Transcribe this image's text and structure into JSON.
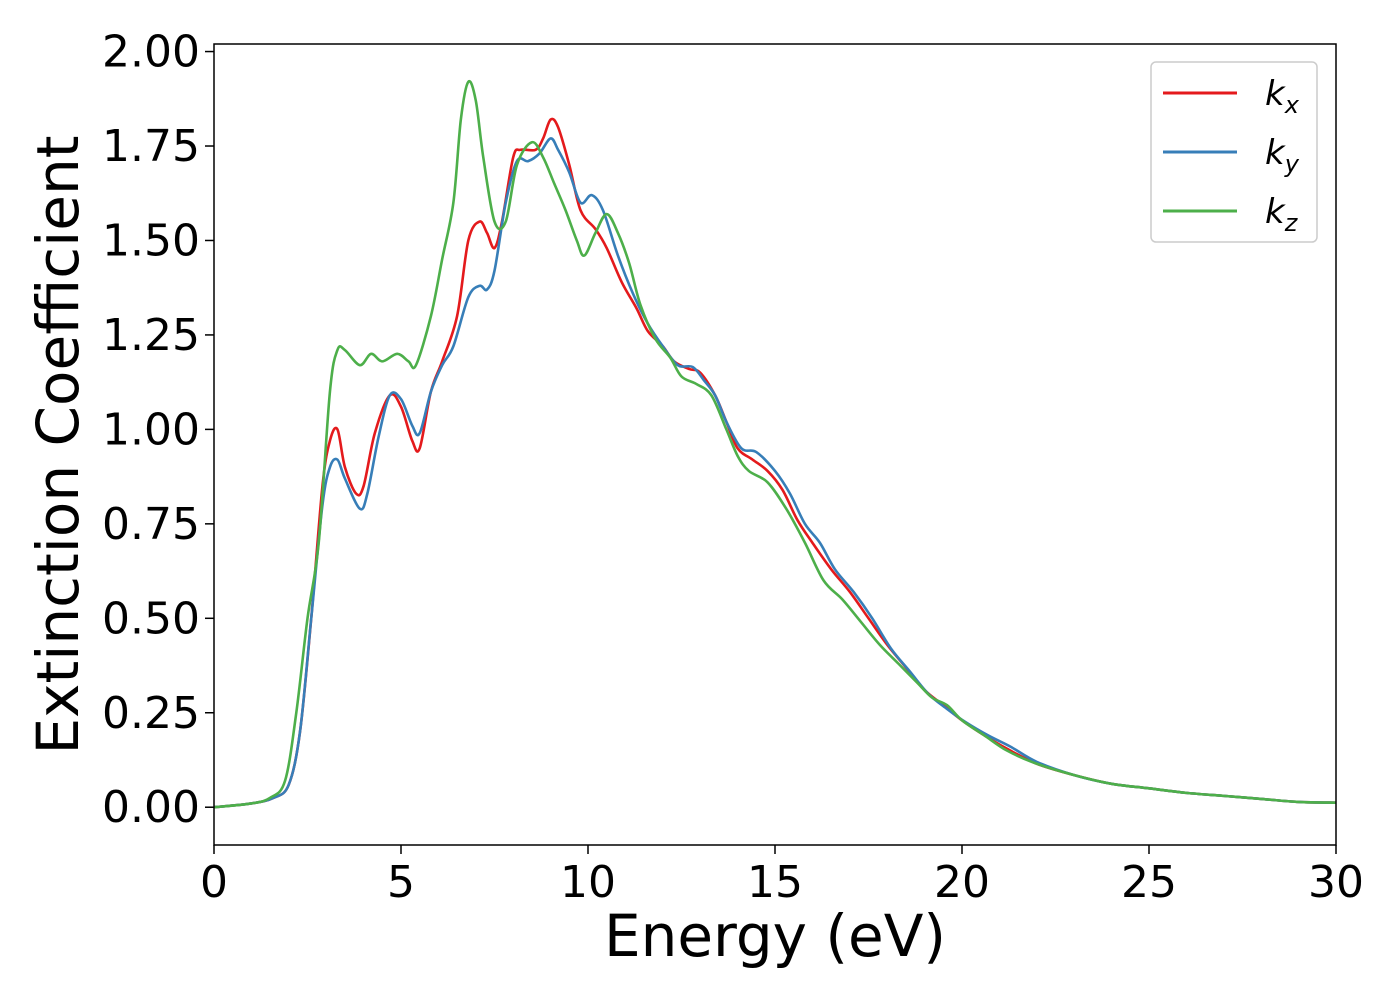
{
  "chart_data": {
    "type": "line",
    "title": "",
    "xlabel": "Energy (eV)",
    "ylabel": "Extinction Coefficient",
    "xlim": [
      0,
      30
    ],
    "ylim": [
      -0.1,
      2.02
    ],
    "xticks": [
      0,
      5,
      10,
      15,
      20,
      25,
      30
    ],
    "xtick_labels": [
      "0",
      "5",
      "10",
      "15",
      "20",
      "25",
      "30"
    ],
    "yticks": [
      0,
      0.25,
      0.5,
      0.75,
      1.0,
      1.25,
      1.5,
      1.75,
      2.0
    ],
    "ytick_labels": [
      "0.00",
      "0.25",
      "0.50",
      "0.75",
      "1.00",
      "1.25",
      "1.50",
      "1.75",
      "2.00"
    ],
    "grid": false,
    "legend_position": "top-right",
    "series": [
      {
        "name": "k_x",
        "legend_base": "k",
        "legend_sub": "x",
        "color": "#e41a1c",
        "points": [
          [
            0,
            0.0
          ],
          [
            1.0,
            0.01
          ],
          [
            1.6,
            0.025
          ],
          [
            2.0,
            0.06
          ],
          [
            2.3,
            0.2
          ],
          [
            2.6,
            0.5
          ],
          [
            2.9,
            0.85
          ],
          [
            3.1,
            0.97
          ],
          [
            3.3,
            1.0
          ],
          [
            3.5,
            0.9
          ],
          [
            3.8,
            0.83
          ],
          [
            4.0,
            0.85
          ],
          [
            4.3,
            0.99
          ],
          [
            4.7,
            1.09
          ],
          [
            5.0,
            1.06
          ],
          [
            5.3,
            0.97
          ],
          [
            5.5,
            0.95
          ],
          [
            5.8,
            1.1
          ],
          [
            6.1,
            1.18
          ],
          [
            6.5,
            1.3
          ],
          [
            6.8,
            1.5
          ],
          [
            7.1,
            1.55
          ],
          [
            7.3,
            1.52
          ],
          [
            7.5,
            1.48
          ],
          [
            7.7,
            1.55
          ],
          [
            8.0,
            1.72
          ],
          [
            8.2,
            1.74
          ],
          [
            8.6,
            1.74
          ],
          [
            8.8,
            1.77
          ],
          [
            9.0,
            1.82
          ],
          [
            9.2,
            1.8
          ],
          [
            9.5,
            1.7
          ],
          [
            9.8,
            1.58
          ],
          [
            10.2,
            1.53
          ],
          [
            10.5,
            1.48
          ],
          [
            10.9,
            1.39
          ],
          [
            11.3,
            1.32
          ],
          [
            11.6,
            1.26
          ],
          [
            12.0,
            1.22
          ],
          [
            12.3,
            1.18
          ],
          [
            12.7,
            1.16
          ],
          [
            13.0,
            1.15
          ],
          [
            13.4,
            1.09
          ],
          [
            13.7,
            1.02
          ],
          [
            14.0,
            0.95
          ],
          [
            14.4,
            0.92
          ],
          [
            14.8,
            0.89
          ],
          [
            15.2,
            0.84
          ],
          [
            15.6,
            0.76
          ],
          [
            16.0,
            0.7
          ],
          [
            16.5,
            0.63
          ],
          [
            17.0,
            0.57
          ],
          [
            17.5,
            0.5
          ],
          [
            18.0,
            0.43
          ],
          [
            18.5,
            0.37
          ],
          [
            19.0,
            0.31
          ],
          [
            19.5,
            0.27
          ],
          [
            20.0,
            0.23
          ],
          [
            20.6,
            0.19
          ],
          [
            21.2,
            0.155
          ],
          [
            22.0,
            0.115
          ],
          [
            23.0,
            0.085
          ],
          [
            24.0,
            0.062
          ],
          [
            25.0,
            0.05
          ],
          [
            26.0,
            0.038
          ],
          [
            27.0,
            0.03
          ],
          [
            28.0,
            0.022
          ],
          [
            29.0,
            0.014
          ],
          [
            30.0,
            0.012
          ]
        ]
      },
      {
        "name": "k_y",
        "legend_base": "k",
        "legend_sub": "y",
        "color": "#377eb8",
        "points": [
          [
            0,
            0.0
          ],
          [
            1.0,
            0.01
          ],
          [
            1.6,
            0.025
          ],
          [
            2.0,
            0.06
          ],
          [
            2.3,
            0.2
          ],
          [
            2.6,
            0.5
          ],
          [
            2.9,
            0.8
          ],
          [
            3.1,
            0.9
          ],
          [
            3.3,
            0.92
          ],
          [
            3.5,
            0.87
          ],
          [
            3.9,
            0.79
          ],
          [
            4.1,
            0.83
          ],
          [
            4.4,
            0.98
          ],
          [
            4.7,
            1.09
          ],
          [
            5.0,
            1.08
          ],
          [
            5.3,
            1.01
          ],
          [
            5.5,
            0.99
          ],
          [
            5.8,
            1.1
          ],
          [
            6.1,
            1.17
          ],
          [
            6.4,
            1.22
          ],
          [
            6.8,
            1.35
          ],
          [
            7.1,
            1.38
          ],
          [
            7.3,
            1.37
          ],
          [
            7.5,
            1.42
          ],
          [
            7.8,
            1.6
          ],
          [
            8.1,
            1.71
          ],
          [
            8.4,
            1.71
          ],
          [
            8.7,
            1.73
          ],
          [
            9.0,
            1.77
          ],
          [
            9.2,
            1.74
          ],
          [
            9.5,
            1.68
          ],
          [
            9.8,
            1.6
          ],
          [
            10.1,
            1.62
          ],
          [
            10.4,
            1.58
          ],
          [
            10.8,
            1.46
          ],
          [
            11.2,
            1.36
          ],
          [
            11.6,
            1.28
          ],
          [
            12.0,
            1.22
          ],
          [
            12.4,
            1.17
          ],
          [
            12.8,
            1.165
          ],
          [
            13.1,
            1.13
          ],
          [
            13.4,
            1.09
          ],
          [
            13.7,
            1.02
          ],
          [
            14.1,
            0.95
          ],
          [
            14.5,
            0.94
          ],
          [
            15.0,
            0.89
          ],
          [
            15.4,
            0.83
          ],
          [
            15.8,
            0.75
          ],
          [
            16.2,
            0.7
          ],
          [
            16.6,
            0.63
          ],
          [
            17.1,
            0.57
          ],
          [
            17.6,
            0.5
          ],
          [
            18.1,
            0.42
          ],
          [
            18.6,
            0.36
          ],
          [
            19.1,
            0.3
          ],
          [
            19.6,
            0.26
          ],
          [
            20.1,
            0.225
          ],
          [
            20.7,
            0.19
          ],
          [
            21.3,
            0.16
          ],
          [
            22.0,
            0.12
          ],
          [
            23.0,
            0.085
          ],
          [
            24.0,
            0.062
          ],
          [
            25.0,
            0.05
          ],
          [
            26.0,
            0.038
          ],
          [
            27.0,
            0.03
          ],
          [
            28.0,
            0.022
          ],
          [
            29.0,
            0.014
          ],
          [
            30.0,
            0.012
          ]
        ]
      },
      {
        "name": "k_z",
        "legend_base": "k",
        "legend_sub": "z",
        "color": "#4daf4a",
        "points": [
          [
            0,
            0.0
          ],
          [
            1.0,
            0.01
          ],
          [
            1.5,
            0.025
          ],
          [
            1.9,
            0.07
          ],
          [
            2.2,
            0.25
          ],
          [
            2.5,
            0.5
          ],
          [
            2.8,
            0.7
          ],
          [
            3.1,
            1.1
          ],
          [
            3.3,
            1.21
          ],
          [
            3.5,
            1.21
          ],
          [
            3.9,
            1.17
          ],
          [
            4.2,
            1.2
          ],
          [
            4.5,
            1.18
          ],
          [
            4.9,
            1.2
          ],
          [
            5.2,
            1.18
          ],
          [
            5.4,
            1.17
          ],
          [
            5.8,
            1.3
          ],
          [
            6.1,
            1.45
          ],
          [
            6.4,
            1.6
          ],
          [
            6.6,
            1.82
          ],
          [
            6.8,
            1.92
          ],
          [
            7.0,
            1.87
          ],
          [
            7.2,
            1.72
          ],
          [
            7.5,
            1.55
          ],
          [
            7.8,
            1.55
          ],
          [
            8.1,
            1.7
          ],
          [
            8.5,
            1.76
          ],
          [
            8.8,
            1.72
          ],
          [
            9.1,
            1.65
          ],
          [
            9.4,
            1.58
          ],
          [
            9.7,
            1.5
          ],
          [
            9.9,
            1.46
          ],
          [
            10.2,
            1.52
          ],
          [
            10.5,
            1.57
          ],
          [
            10.8,
            1.52
          ],
          [
            11.1,
            1.44
          ],
          [
            11.4,
            1.33
          ],
          [
            11.8,
            1.24
          ],
          [
            12.2,
            1.19
          ],
          [
            12.5,
            1.14
          ],
          [
            12.9,
            1.12
          ],
          [
            13.3,
            1.09
          ],
          [
            13.7,
            1.0
          ],
          [
            14.0,
            0.93
          ],
          [
            14.3,
            0.89
          ],
          [
            14.8,
            0.86
          ],
          [
            15.3,
            0.79
          ],
          [
            15.8,
            0.7
          ],
          [
            16.3,
            0.6
          ],
          [
            16.8,
            0.55
          ],
          [
            17.3,
            0.49
          ],
          [
            17.8,
            0.43
          ],
          [
            18.3,
            0.38
          ],
          [
            18.8,
            0.33
          ],
          [
            19.2,
            0.29
          ],
          [
            19.6,
            0.27
          ],
          [
            20.0,
            0.23
          ],
          [
            20.6,
            0.19
          ],
          [
            21.2,
            0.15
          ],
          [
            22.0,
            0.115
          ],
          [
            23.0,
            0.085
          ],
          [
            24.0,
            0.062
          ],
          [
            25.0,
            0.05
          ],
          [
            26.0,
            0.038
          ],
          [
            27.0,
            0.03
          ],
          [
            28.0,
            0.022
          ],
          [
            29.0,
            0.014
          ],
          [
            30.0,
            0.012
          ]
        ]
      }
    ]
  }
}
